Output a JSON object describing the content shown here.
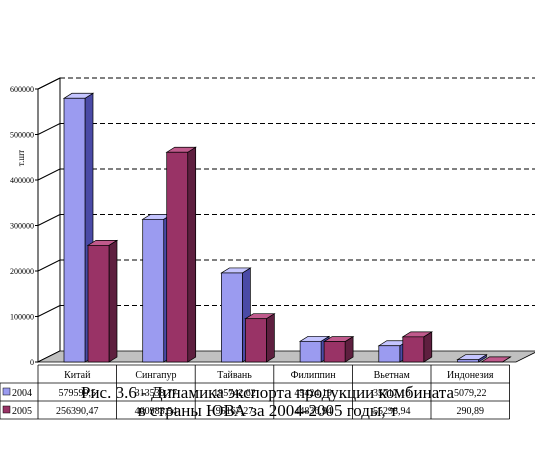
{
  "chart_data": {
    "type": "bar",
    "categories": [
      "Китай",
      "Сингапур",
      "Тайвань",
      "Филиппин",
      "Вьетнам",
      "Индонезия"
    ],
    "series": [
      {
        "name": "2004",
        "values": [
          579599.5,
          313538.77,
          195742.62,
          45424.19,
          35717.16,
          5079.22
        ],
        "labels": [
          "579599,5",
          "313538,77",
          "195742,62",
          "45424,19",
          "35717,16",
          "5079,22"
        ]
      },
      {
        "name": "2005",
        "values": [
          256390.47,
          460983.54,
          95167.27,
          44836.94,
          55298.94,
          290.89
        ],
        "labels": [
          "256390,47",
          "460983,54",
          "95167,27",
          "44836,94",
          "55298,94",
          "290,89"
        ]
      }
    ],
    "ylabel": "т.шт",
    "yticks": [
      "0",
      "100000",
      "200000",
      "300000",
      "400000",
      "500000",
      "600000"
    ],
    "ylim": [
      0,
      600000
    ],
    "grid": true,
    "data_table": true
  },
  "colors": {
    "series_2004_front": "#9b9bf0",
    "series_2004_side": "#4a4aa6",
    "series_2004_top": "#c5c5ff",
    "series_2005_front": "#993366",
    "series_2005_side": "#5e1f3f",
    "series_2005_top": "#c05a8c",
    "grid": "#000000",
    "floor": "#c0c0c0"
  },
  "caption": {
    "line1": "Рис. 3.6 - Динамика экспорта продукции комбината",
    "line2": "в страны ЮВА за 2004-2005 годы, т"
  }
}
